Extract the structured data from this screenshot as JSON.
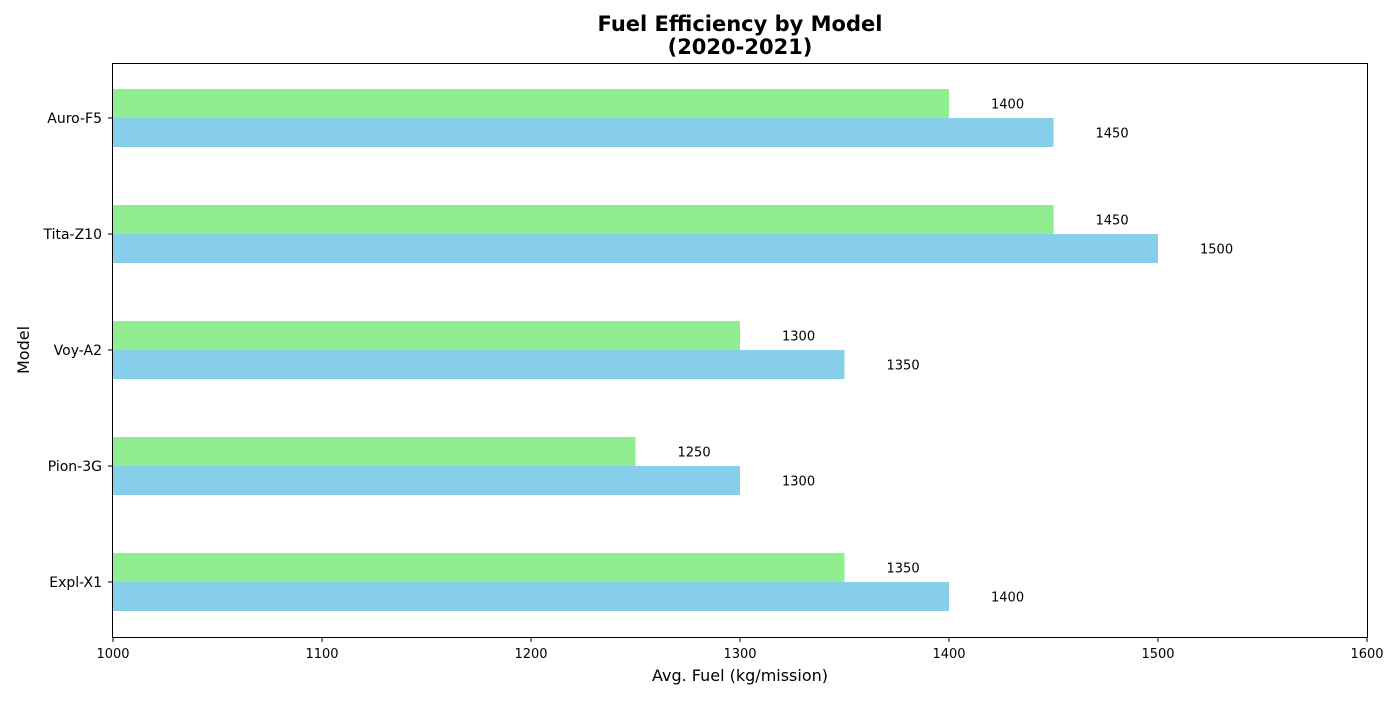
{
  "chart_data": {
    "type": "bar",
    "orientation": "horizontal",
    "title_lines": [
      "Fuel Efficiency by Model",
      "(2020-2021)"
    ],
    "xlabel": "Avg. Fuel (kg/mission)",
    "ylabel": "Model",
    "xlim": [
      1000,
      1600
    ],
    "x_ticks": [
      1000,
      1100,
      1200,
      1300,
      1400,
      1500,
      1600
    ],
    "categories": [
      "Expl-X1",
      "Pion-3G",
      "Voy-A2",
      "Tita-Z10",
      "Auro-F5"
    ],
    "series": [
      {
        "color": "#87ceeb",
        "values": [
          1400,
          1300,
          1350,
          1500,
          1450
        ]
      },
      {
        "color": "#90ee90",
        "values": [
          1350,
          1250,
          1300,
          1450,
          1400
        ]
      }
    ],
    "data_labels": true,
    "grid": false,
    "legend": "none"
  }
}
